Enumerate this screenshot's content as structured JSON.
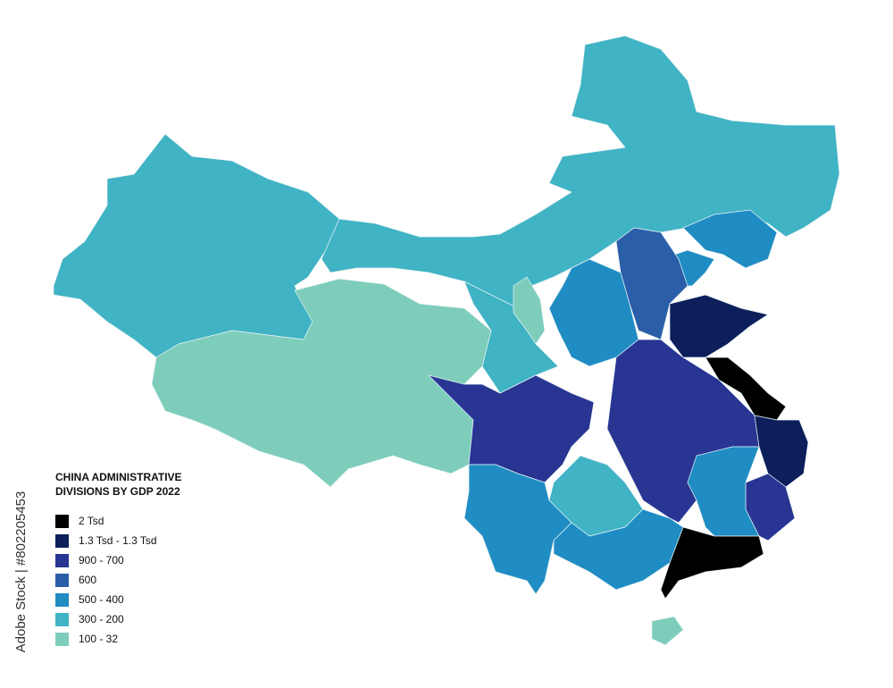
{
  "title_lines": [
    "CHINA ADMINISTRATIVE",
    "DIVISIONS BY GDP 2022"
  ],
  "legend": [
    {
      "label": "2 Tsd",
      "color": "#000000"
    },
    {
      "label": "1.3 Tsd - 1.3 Tsd",
      "color": "#0c1f5b"
    },
    {
      "label": "900 - 700",
      "color": "#283593"
    },
    {
      "label": "600",
      "color": "#2b5ea8"
    },
    {
      "label": "500 - 400",
      "color": "#1f8dc3"
    },
    {
      "label": "300 - 200",
      "color": "#40b3c4"
    },
    {
      "label": "100 - 32",
      "color": "#7ecdbb"
    }
  ],
  "watermark": "Adobe Stock | #802205453"
}
